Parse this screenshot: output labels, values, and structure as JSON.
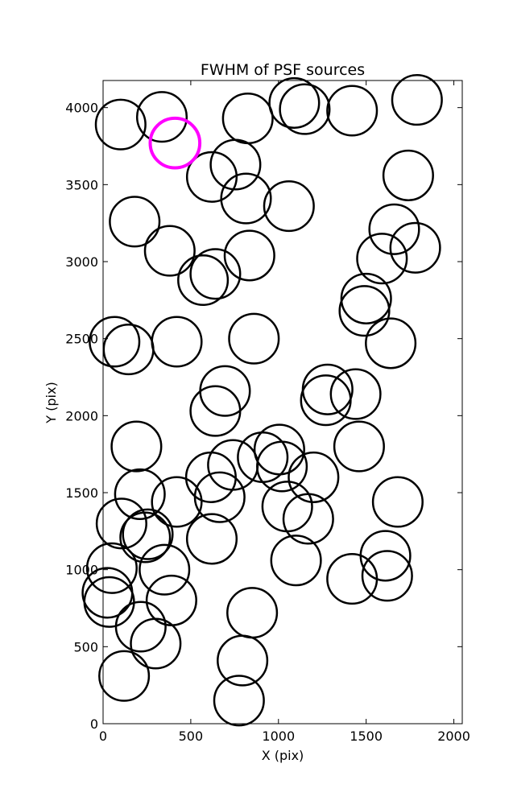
{
  "chart_data": {
    "type": "scatter",
    "title": "FWHM of PSF sources",
    "xlabel": "X (pix)",
    "ylabel": "Y (pix)",
    "xlim": [
      0,
      2048
    ],
    "ylim": [
      0,
      4176
    ],
    "xticks": [
      "0",
      "500",
      "1000",
      "1500",
      "2000"
    ],
    "yticks": [
      "0",
      "500",
      "1000",
      "1500",
      "2000",
      "2500",
      "3000",
      "3500",
      "4000"
    ],
    "grid": false,
    "marker": "open circle",
    "series": [
      {
        "color": "#000000",
        "marker_size": 1.1,
        "points": [
          [
            100,
            3890
          ],
          [
            335,
            3940
          ],
          [
            825,
            3930
          ],
          [
            1090,
            4030
          ],
          [
            1150,
            3990
          ],
          [
            1420,
            3980
          ],
          [
            1790,
            4050
          ],
          [
            1740,
            3560
          ],
          [
            620,
            3550
          ],
          [
            755,
            3630
          ],
          [
            815,
            3410
          ],
          [
            1060,
            3360
          ],
          [
            180,
            3260
          ],
          [
            380,
            3070
          ],
          [
            570,
            2880
          ],
          [
            640,
            2920
          ],
          [
            835,
            3040
          ],
          [
            1660,
            3210
          ],
          [
            1590,
            3020
          ],
          [
            1780,
            3090
          ],
          [
            1500,
            2760
          ],
          [
            1490,
            2680
          ],
          [
            65,
            2480
          ],
          [
            145,
            2430
          ],
          [
            420,
            2480
          ],
          [
            860,
            2500
          ],
          [
            1640,
            2470
          ],
          [
            695,
            2160
          ],
          [
            640,
            2030
          ],
          [
            1280,
            2170
          ],
          [
            1270,
            2100
          ],
          [
            1440,
            2140
          ],
          [
            190,
            1800
          ],
          [
            1460,
            1800
          ],
          [
            1005,
            1780
          ],
          [
            910,
            1730
          ],
          [
            1020,
            1670
          ],
          [
            740,
            1680
          ],
          [
            1200,
            1600
          ],
          [
            615,
            1600
          ],
          [
            665,
            1470
          ],
          [
            1050,
            1410
          ],
          [
            210,
            1490
          ],
          [
            420,
            1440
          ],
          [
            1170,
            1330
          ],
          [
            1680,
            1440
          ],
          [
            105,
            1300
          ],
          [
            255,
            1230
          ],
          [
            240,
            1210
          ],
          [
            620,
            1200
          ],
          [
            1100,
            1060
          ],
          [
            50,
            1010
          ],
          [
            350,
            1000
          ],
          [
            1610,
            1090
          ],
          [
            1420,
            940
          ],
          [
            1620,
            960
          ],
          [
            25,
            850
          ],
          [
            35,
            790
          ],
          [
            390,
            800
          ],
          [
            850,
            720
          ],
          [
            215,
            630
          ],
          [
            300,
            520
          ],
          [
            795,
            410
          ],
          [
            120,
            310
          ],
          [
            775,
            150
          ]
        ]
      },
      {
        "color": "#ff00ff",
        "marker_size": 1.1,
        "points": [
          [
            410,
            3770
          ]
        ]
      }
    ]
  }
}
